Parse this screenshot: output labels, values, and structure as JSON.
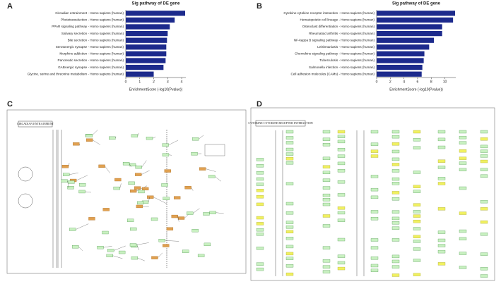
{
  "panel_labels": [
    "A",
    "B",
    "C",
    "D"
  ],
  "chart_data": [
    {
      "type": "barh",
      "title": "Sig pathway of DE gene",
      "x_label": "EnrichmentScore (-log10(Pvalue))",
      "categories": [
        "Circadian entrainment - Homo sapiens (human)",
        "Phototransduction - Homo sapiens (human)",
        "PPAR signaling pathway - Homo sapiens (human)",
        "Salivary secretion - Homo sapiens (human)",
        "Bile secretion - Homo sapiens (human)",
        "Serotonergic synapse - Homo sapiens (human)",
        "Morphine addiction - Homo sapiens (human)",
        "Pancreatic secretion - Homo sapiens (human)",
        "GABAergic synapse - Homo sapiens (human)",
        "Glycine, serine and threonine metabolism - Homo sapiens (human)"
      ],
      "values": [
        4.25,
        3.5,
        3.15,
        3.0,
        2.95,
        2.9,
        2.9,
        2.85,
        2.7,
        2.0
      ],
      "color": "#1c2a8c",
      "xlim": [
        0,
        4.3
      ],
      "xticks": [
        0,
        1,
        2,
        3,
        4
      ]
    },
    {
      "type": "barh",
      "title": "Sig pathway of DE gene",
      "x_label": "EnrichmentScore (-log10(Pvalue))",
      "categories": [
        "Cytokine-cytokine receptor interaction - Homo sapiens (human)",
        "Hematopoietic cell lineage - Homo sapiens (human)",
        "Osteoclast differentiation - Homo sapiens (human)",
        "Rheumatoid arthritis - Homo sapiens (human)",
        "NF-kappa B signaling pathway - Homo sapiens (human)",
        "Leishmaniasis - Homo sapiens (human)",
        "Chemokine signaling pathway - Homo sapiens (human)",
        "Tuberculosis - Homo sapiens (human)",
        "Salmonella infection - Homo sapiens (human)",
        "Cell adhesion molecules (CAMs) - Homo sapiens (human)"
      ],
      "values": [
        11.5,
        11.2,
        9.6,
        9.6,
        8.4,
        7.7,
        7.0,
        6.9,
        6.7,
        6.6
      ],
      "color": "#1c2a8c",
      "xlim": [
        0,
        11.6
      ],
      "xticks": [
        0,
        2,
        4,
        6,
        8,
        10
      ]
    }
  ],
  "diagrams": [
    {
      "title": "CIRCADIAN ENTRAINMENT"
    },
    {
      "title": "CYTOKINE-CYTOKINE RECEPTOR INTERACTION"
    }
  ]
}
